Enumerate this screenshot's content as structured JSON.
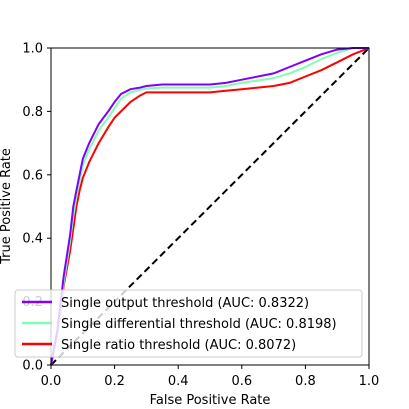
{
  "chart_data": {
    "type": "line",
    "title": "",
    "xlabel": "False Positive Rate",
    "ylabel": "True Positive Rate",
    "xlim": [
      0.0,
      1.0
    ],
    "ylim": [
      0.0,
      1.0
    ],
    "xticks": [
      "0.0",
      "0.2",
      "0.4",
      "0.6",
      "0.8",
      "1.0"
    ],
    "yticks": [
      "0.0",
      "0.2",
      "0.4",
      "0.6",
      "0.8",
      "1.0"
    ],
    "grid": false,
    "legend_position": "lower-left",
    "series": [
      {
        "name": "Single output threshold (AUC: 0.8322)",
        "color": "#8000ff",
        "style": "solid",
        "x": [
          0.0,
          0.02,
          0.04,
          0.06,
          0.07,
          0.08,
          0.09,
          0.1,
          0.12,
          0.15,
          0.18,
          0.2,
          0.22,
          0.25,
          0.28,
          0.3,
          0.35,
          0.4,
          0.5,
          0.55,
          0.6,
          0.7,
          0.75,
          0.8,
          0.85,
          0.9,
          0.95,
          1.0
        ],
        "y": [
          0.0,
          0.11,
          0.28,
          0.41,
          0.5,
          0.55,
          0.6,
          0.65,
          0.7,
          0.76,
          0.8,
          0.83,
          0.855,
          0.87,
          0.875,
          0.88,
          0.885,
          0.885,
          0.885,
          0.89,
          0.9,
          0.92,
          0.94,
          0.96,
          0.98,
          0.995,
          1.0,
          1.0
        ]
      },
      {
        "name": "Single differential threshold (AUC: 0.8198)",
        "color": "#80ffb4",
        "style": "solid",
        "x": [
          0.0,
          0.02,
          0.04,
          0.06,
          0.07,
          0.08,
          0.09,
          0.1,
          0.12,
          0.15,
          0.18,
          0.2,
          0.22,
          0.25,
          0.28,
          0.3,
          0.35,
          0.4,
          0.5,
          0.55,
          0.6,
          0.7,
          0.75,
          0.8,
          0.85,
          0.9,
          0.95,
          1.0
        ],
        "y": [
          0.0,
          0.1,
          0.26,
          0.39,
          0.47,
          0.53,
          0.58,
          0.63,
          0.68,
          0.74,
          0.78,
          0.81,
          0.84,
          0.86,
          0.868,
          0.872,
          0.875,
          0.875,
          0.875,
          0.88,
          0.89,
          0.905,
          0.92,
          0.94,
          0.965,
          0.985,
          1.0,
          1.0
        ]
      },
      {
        "name": "Single ratio threshold (AUC: 0.8072)",
        "color": "#ff0000",
        "style": "solid",
        "x": [
          0.0,
          0.02,
          0.04,
          0.06,
          0.07,
          0.08,
          0.09,
          0.1,
          0.12,
          0.15,
          0.18,
          0.2,
          0.22,
          0.25,
          0.28,
          0.3,
          0.35,
          0.4,
          0.5,
          0.55,
          0.6,
          0.7,
          0.75,
          0.8,
          0.85,
          0.9,
          0.95,
          1.0
        ],
        "y": [
          0.0,
          0.1,
          0.25,
          0.36,
          0.43,
          0.5,
          0.55,
          0.59,
          0.64,
          0.7,
          0.75,
          0.78,
          0.8,
          0.83,
          0.85,
          0.86,
          0.86,
          0.86,
          0.86,
          0.865,
          0.87,
          0.88,
          0.89,
          0.91,
          0.93,
          0.955,
          0.98,
          1.0
        ]
      },
      {
        "name": "",
        "color": "#000000",
        "style": "dashed",
        "x": [
          0.0,
          1.0
        ],
        "y": [
          0.0,
          1.0
        ]
      }
    ]
  }
}
